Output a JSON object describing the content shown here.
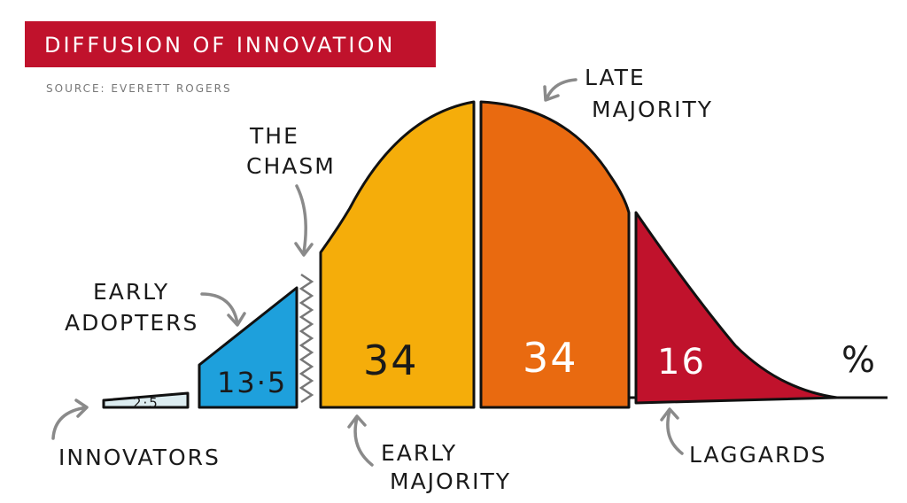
{
  "header": {
    "title": "DIFFUSION OF INNOVATION",
    "source": "SOURCE: EVERETT ROGERS"
  },
  "segments": [
    {
      "value": "2·5",
      "label": [
        "INNOVATORS"
      ]
    },
    {
      "value": "13·5",
      "label": [
        "EARLY",
        "ADOPTERS"
      ]
    },
    {
      "value": "34",
      "label": [
        "EARLY",
        "MAJORITY"
      ]
    },
    {
      "value": "34",
      "label": [
        "LATE",
        "MAJORITY"
      ]
    },
    {
      "value": "16",
      "label": [
        "LAGGARDS"
      ]
    }
  ],
  "annotations": {
    "chasm": [
      "THE",
      "CHASM"
    ],
    "unit": "%"
  }
}
